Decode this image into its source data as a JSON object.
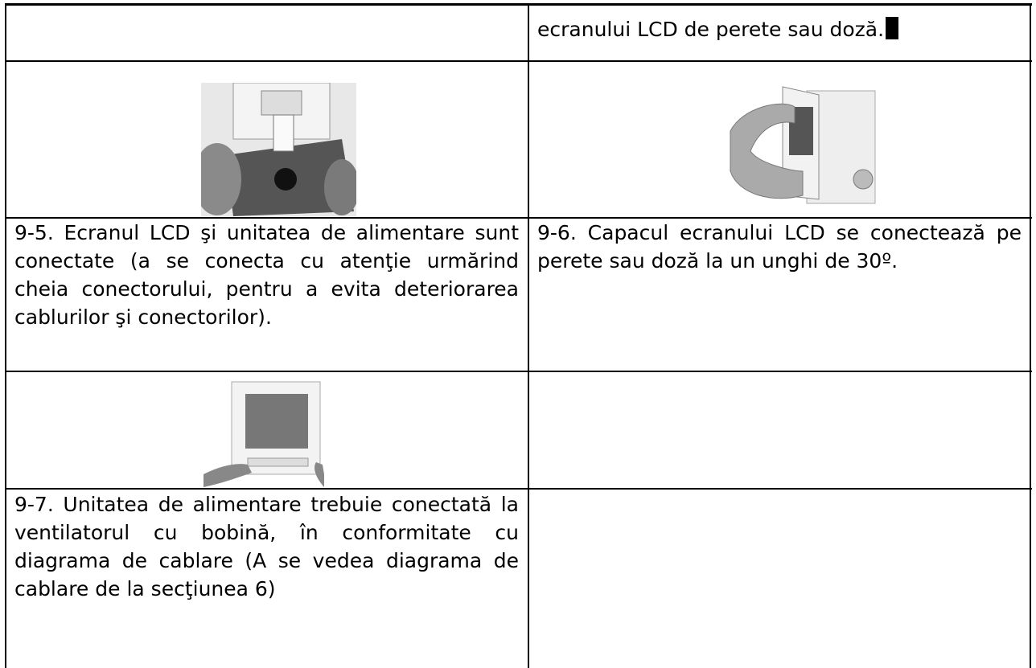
{
  "table": {
    "row1": {
      "right": "ecranului LCD de perete sau doză."
    },
    "row3": {
      "left": "9-5. Ecranul LCD şi unitatea de alimentare sunt conectate (a se conecta cu atenţie urmărind cheia conectorului, pentru a evita deteriorarea cablurilor şi conectorilor).",
      "right": "9-6. Capacul ecranului LCD se conectează pe perete sau doză la un unghi de 30º."
    },
    "row5": {
      "left": "9-7. Unitatea de alimentare trebuie conectată la ventilatorul cu bobină, în conformitate cu diagrama de cablare (A se vedea diagrama de cablare de la secţiunea 6)"
    }
  }
}
